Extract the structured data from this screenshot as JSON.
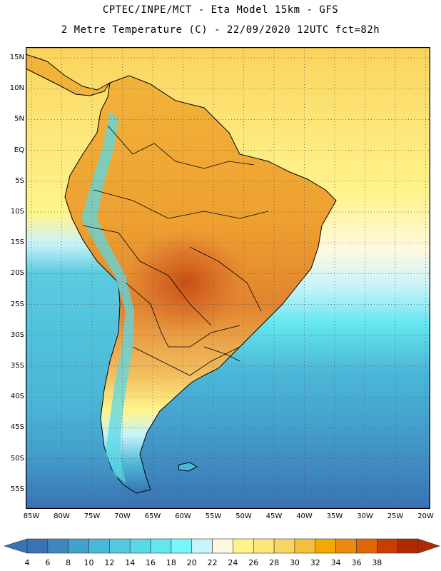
{
  "header": {
    "title_line1": "CPTEC/INPE/MCT -  Eta Model 15km - GFS",
    "title_line2": "2 Metre Temperature (C) - 22/09/2020 12UTC fct=82h"
  },
  "map": {
    "lat_labels": [
      "15N",
      "10N",
      "5N",
      "EQ",
      "5S",
      "10S",
      "15S",
      "20S",
      "25S",
      "30S",
      "35S",
      "40S",
      "45S",
      "50S",
      "55S"
    ],
    "lon_labels": [
      "85W",
      "80W",
      "75W",
      "70W",
      "65W",
      "60W",
      "55W",
      "50W",
      "45W",
      "40W",
      "35W",
      "30W",
      "25W",
      "20W"
    ]
  },
  "colorbar": {
    "labels": [
      "4",
      "6",
      "8",
      "10",
      "12",
      "14",
      "16",
      "18",
      "20",
      "22",
      "24",
      "26",
      "28",
      "30",
      "32",
      "34",
      "36",
      "38"
    ],
    "colors": [
      "#3a72b4",
      "#3e87c0",
      "#44a0cc",
      "#4cb8d8",
      "#55c9de",
      "#5ad8e6",
      "#64e6ee",
      "#7af5f8",
      "#c7f3fb",
      "#fff8e1",
      "#fff48c",
      "#fde77a",
      "#f8d560",
      "#f1c13c",
      "#f2a900",
      "#ec8a10",
      "#e06608",
      "#c93e00",
      "#b02a00"
    ],
    "units": "C"
  }
}
